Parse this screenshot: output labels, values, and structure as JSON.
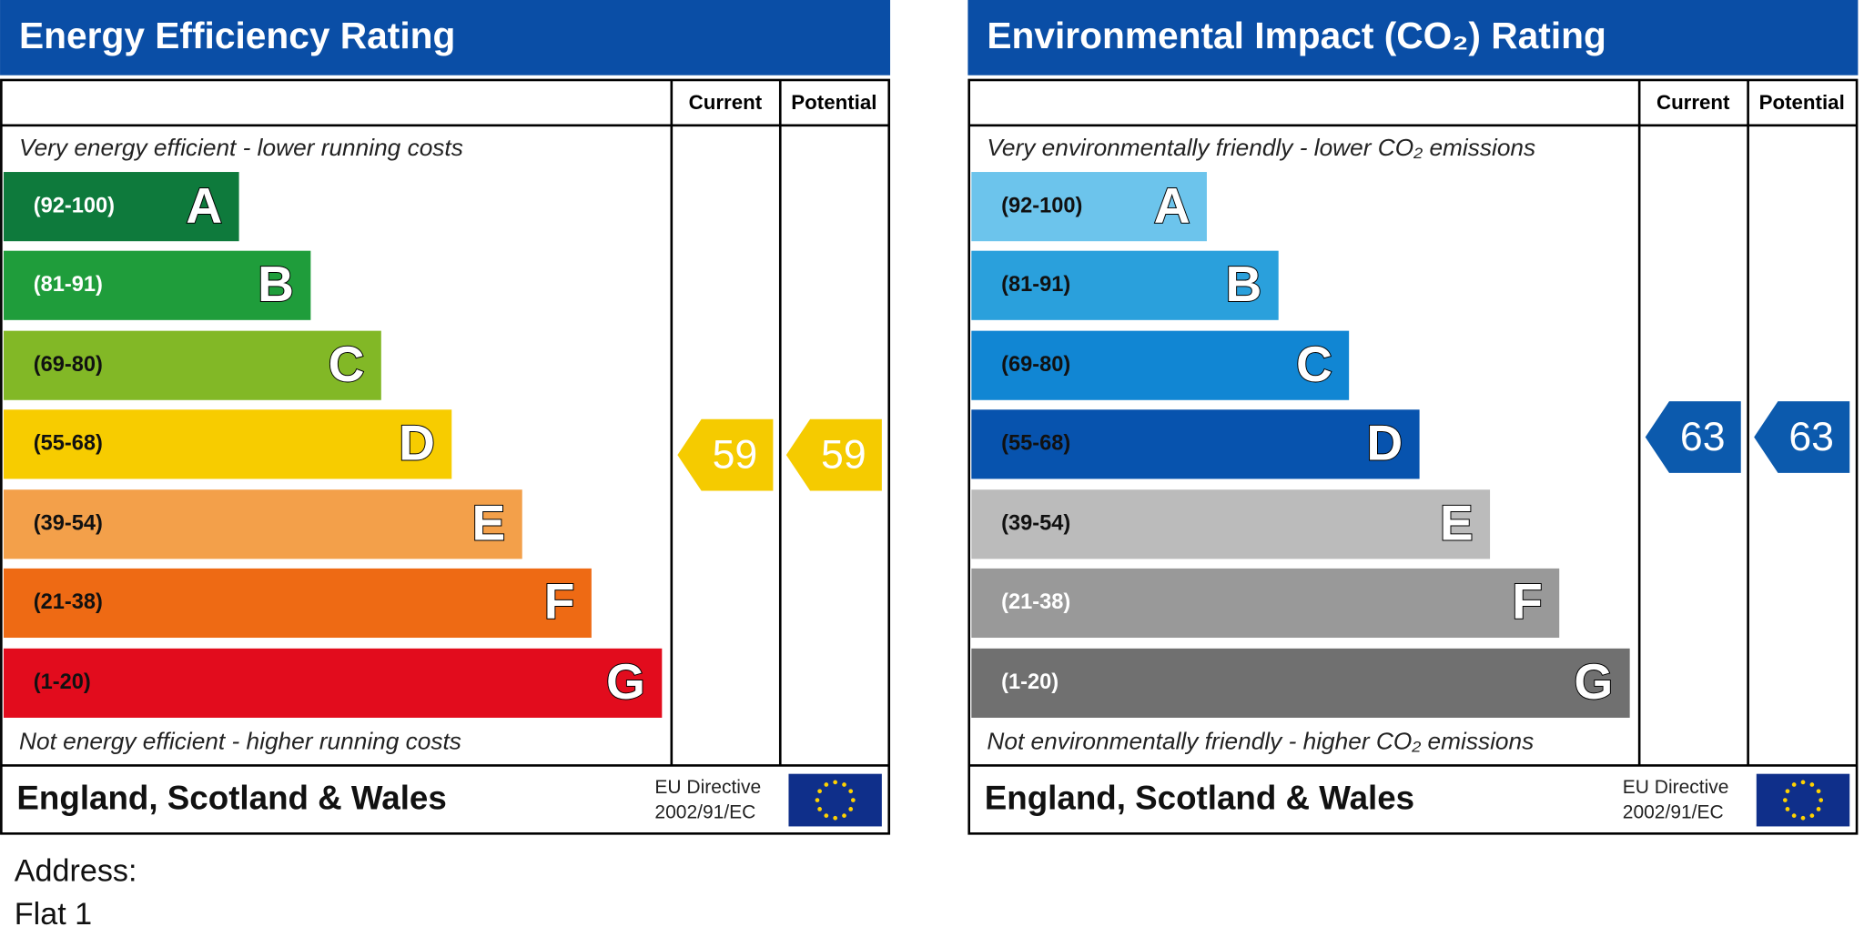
{
  "panels": [
    {
      "title": "Energy Efficiency Rating",
      "columns": [
        "Current",
        "Potential"
      ],
      "top_note": "Very energy efficient - lower running costs",
      "bottom_note": "Not energy efficient - higher running costs",
      "bands": [
        {
          "range": "(92-100)",
          "letter": "A",
          "color": "#0e7a3c"
        },
        {
          "range": "(81-91)",
          "letter": "B",
          "color": "#1f9d3b"
        },
        {
          "range": "(69-80)",
          "letter": "C",
          "color": "#82b826"
        },
        {
          "range": "(55-68)",
          "letter": "D",
          "color": "#f7cc00"
        },
        {
          "range": "(39-54)",
          "letter": "E",
          "color": "#f3a04a"
        },
        {
          "range": "(21-38)",
          "letter": "F",
          "color": "#ee6a14"
        },
        {
          "range": "(1-20)",
          "letter": "G",
          "color": "#e20c1d"
        }
      ],
      "current": 59,
      "potential": 59,
      "arrow_color": "#f5cb00",
      "region": "England, Scotland & Wales",
      "directive": [
        "EU Directive",
        "2002/91/EC"
      ]
    },
    {
      "title": "Environmental Impact (CO₂) Rating",
      "columns": [
        "Current",
        "Potential"
      ],
      "top_note": "Very environmentally friendly - lower CO₂ emissions",
      "bottom_note": "Not environmentally friendly - higher CO₂ emissions",
      "bands": [
        {
          "range": "(92-100)",
          "letter": "A",
          "color": "#6cc4ec"
        },
        {
          "range": "(81-91)",
          "letter": "B",
          "color": "#2aa0dc"
        },
        {
          "range": "(69-80)",
          "letter": "C",
          "color": "#1186d3"
        },
        {
          "range": "(55-68)",
          "letter": "D",
          "color": "#0753ae"
        },
        {
          "range": "(39-54)",
          "letter": "E",
          "color": "#bbbbbb"
        },
        {
          "range": "(21-38)",
          "letter": "F",
          "color": "#999999"
        },
        {
          "range": "(1-20)",
          "letter": "G",
          "color": "#707070"
        }
      ],
      "current": 63,
      "potential": 63,
      "arrow_color": "#0c5aad",
      "region": "England, Scotland & Wales",
      "directive": [
        "EU Directive",
        "2002/91/EC"
      ]
    }
  ],
  "address": {
    "label": "Address:",
    "value": "Flat 1"
  }
}
